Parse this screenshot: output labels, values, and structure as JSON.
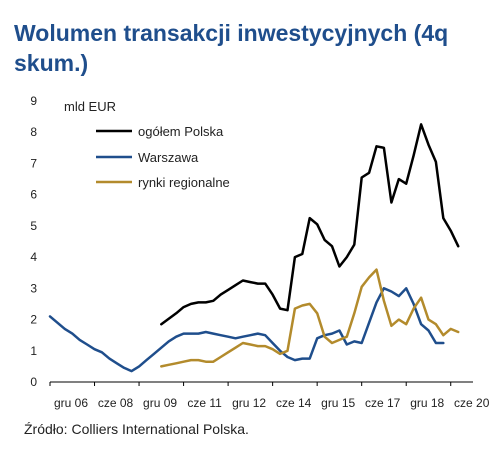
{
  "chart_data": {
    "type": "line",
    "title": "Wolumen transakcji inwestycyjnych (4q skum.)",
    "ylabel": "mld EUR",
    "ylim": [
      0,
      9
    ],
    "yticks": [
      0,
      1,
      2,
      3,
      4,
      5,
      6,
      7,
      8,
      9
    ],
    "xlim": [
      0,
      57
    ],
    "xtick_labels": [
      "gru 06",
      "cze 08",
      "gru 09",
      "cze 11",
      "gru 12",
      "cze 14",
      "gru 15",
      "cze 17",
      "gru 18",
      "cze 20"
    ],
    "xtick_positions": [
      0,
      6,
      12,
      18,
      24,
      30,
      36,
      42,
      48,
      54
    ],
    "legend_position": "top-center",
    "grid": false,
    "series": [
      {
        "name": "ogółem Polska",
        "color": "#000000",
        "points": [
          [
            15,
            1.85
          ],
          [
            17,
            2.2
          ],
          [
            18,
            2.4
          ],
          [
            19,
            2.5
          ],
          [
            20,
            2.55
          ],
          [
            21,
            2.55
          ],
          [
            22,
            2.6
          ],
          [
            23,
            2.8
          ],
          [
            24,
            2.95
          ],
          [
            25,
            3.1
          ],
          [
            26,
            3.25
          ],
          [
            27,
            3.2
          ],
          [
            28,
            3.15
          ],
          [
            29,
            3.15
          ],
          [
            30,
            2.8
          ],
          [
            31,
            2.35
          ],
          [
            32,
            2.3
          ],
          [
            33,
            4.0
          ],
          [
            34,
            4.1
          ],
          [
            35,
            5.25
          ],
          [
            36,
            5.05
          ],
          [
            37,
            4.55
          ],
          [
            38,
            4.35
          ],
          [
            39,
            3.7
          ],
          [
            40,
            4.0
          ],
          [
            41,
            4.4
          ],
          [
            42,
            6.55
          ],
          [
            43,
            6.7
          ],
          [
            44,
            7.55
          ],
          [
            45,
            7.5
          ],
          [
            46,
            5.75
          ],
          [
            47,
            6.5
          ],
          [
            48,
            6.35
          ],
          [
            49,
            7.25
          ],
          [
            50,
            8.25
          ],
          [
            51,
            7.6
          ],
          [
            52,
            7.05
          ],
          [
            53,
            5.25
          ],
          [
            54,
            4.85
          ],
          [
            55,
            4.35
          ]
        ]
      },
      {
        "name": "Warszawa",
        "color": "#1f4e8c",
        "points": [
          [
            0,
            2.1
          ],
          [
            1,
            1.9
          ],
          [
            2,
            1.7
          ],
          [
            3,
            1.55
          ],
          [
            4,
            1.35
          ],
          [
            5,
            1.2
          ],
          [
            6,
            1.05
          ],
          [
            7,
            0.95
          ],
          [
            8,
            0.75
          ],
          [
            9,
            0.6
          ],
          [
            10,
            0.45
          ],
          [
            11,
            0.35
          ],
          [
            12,
            0.5
          ],
          [
            13,
            0.7
          ],
          [
            14,
            0.9
          ],
          [
            15,
            1.1
          ],
          [
            16,
            1.3
          ],
          [
            17,
            1.45
          ],
          [
            18,
            1.55
          ],
          [
            19,
            1.55
          ],
          [
            20,
            1.55
          ],
          [
            21,
            1.6
          ],
          [
            22,
            1.55
          ],
          [
            23,
            1.5
          ],
          [
            24,
            1.45
          ],
          [
            25,
            1.4
          ],
          [
            26,
            1.45
          ],
          [
            27,
            1.5
          ],
          [
            28,
            1.55
          ],
          [
            29,
            1.5
          ],
          [
            30,
            1.25
          ],
          [
            31,
            1.0
          ],
          [
            32,
            0.8
          ],
          [
            33,
            0.7
          ],
          [
            34,
            0.75
          ],
          [
            35,
            0.75
          ],
          [
            36,
            1.4
          ],
          [
            37,
            1.5
          ],
          [
            38,
            1.55
          ],
          [
            39,
            1.65
          ],
          [
            40,
            1.2
          ],
          [
            41,
            1.3
          ],
          [
            42,
            1.25
          ],
          [
            43,
            1.9
          ],
          [
            44,
            2.55
          ],
          [
            45,
            3.0
          ],
          [
            46,
            2.9
          ],
          [
            47,
            2.75
          ],
          [
            48,
            3.0
          ],
          [
            49,
            2.5
          ],
          [
            50,
            1.85
          ],
          [
            51,
            1.65
          ],
          [
            52,
            1.25
          ],
          [
            53,
            1.25
          ]
        ]
      },
      {
        "name": "rynki regionalne",
        "color": "#b38b2c",
        "points": [
          [
            15,
            0.5
          ],
          [
            16,
            0.55
          ],
          [
            17,
            0.6
          ],
          [
            18,
            0.65
          ],
          [
            19,
            0.7
          ],
          [
            20,
            0.7
          ],
          [
            21,
            0.65
          ],
          [
            22,
            0.65
          ],
          [
            23,
            0.8
          ],
          [
            24,
            0.95
          ],
          [
            25,
            1.1
          ],
          [
            26,
            1.25
          ],
          [
            27,
            1.2
          ],
          [
            28,
            1.15
          ],
          [
            29,
            1.15
          ],
          [
            30,
            1.05
          ],
          [
            31,
            0.9
          ],
          [
            32,
            1.0
          ],
          [
            33,
            2.35
          ],
          [
            34,
            2.45
          ],
          [
            35,
            2.5
          ],
          [
            36,
            2.2
          ],
          [
            37,
            1.45
          ],
          [
            38,
            1.25
          ],
          [
            39,
            1.35
          ],
          [
            40,
            1.45
          ],
          [
            41,
            2.2
          ],
          [
            42,
            3.05
          ],
          [
            43,
            3.35
          ],
          [
            44,
            3.6
          ],
          [
            45,
            2.6
          ],
          [
            46,
            1.8
          ],
          [
            47,
            2.0
          ],
          [
            48,
            1.85
          ],
          [
            49,
            2.35
          ],
          [
            50,
            2.7
          ],
          [
            51,
            2.0
          ],
          [
            52,
            1.85
          ],
          [
            53,
            1.5
          ],
          [
            54,
            1.7
          ],
          [
            55,
            1.6
          ]
        ]
      }
    ]
  },
  "source": "Źródło: Colliers International Polska."
}
